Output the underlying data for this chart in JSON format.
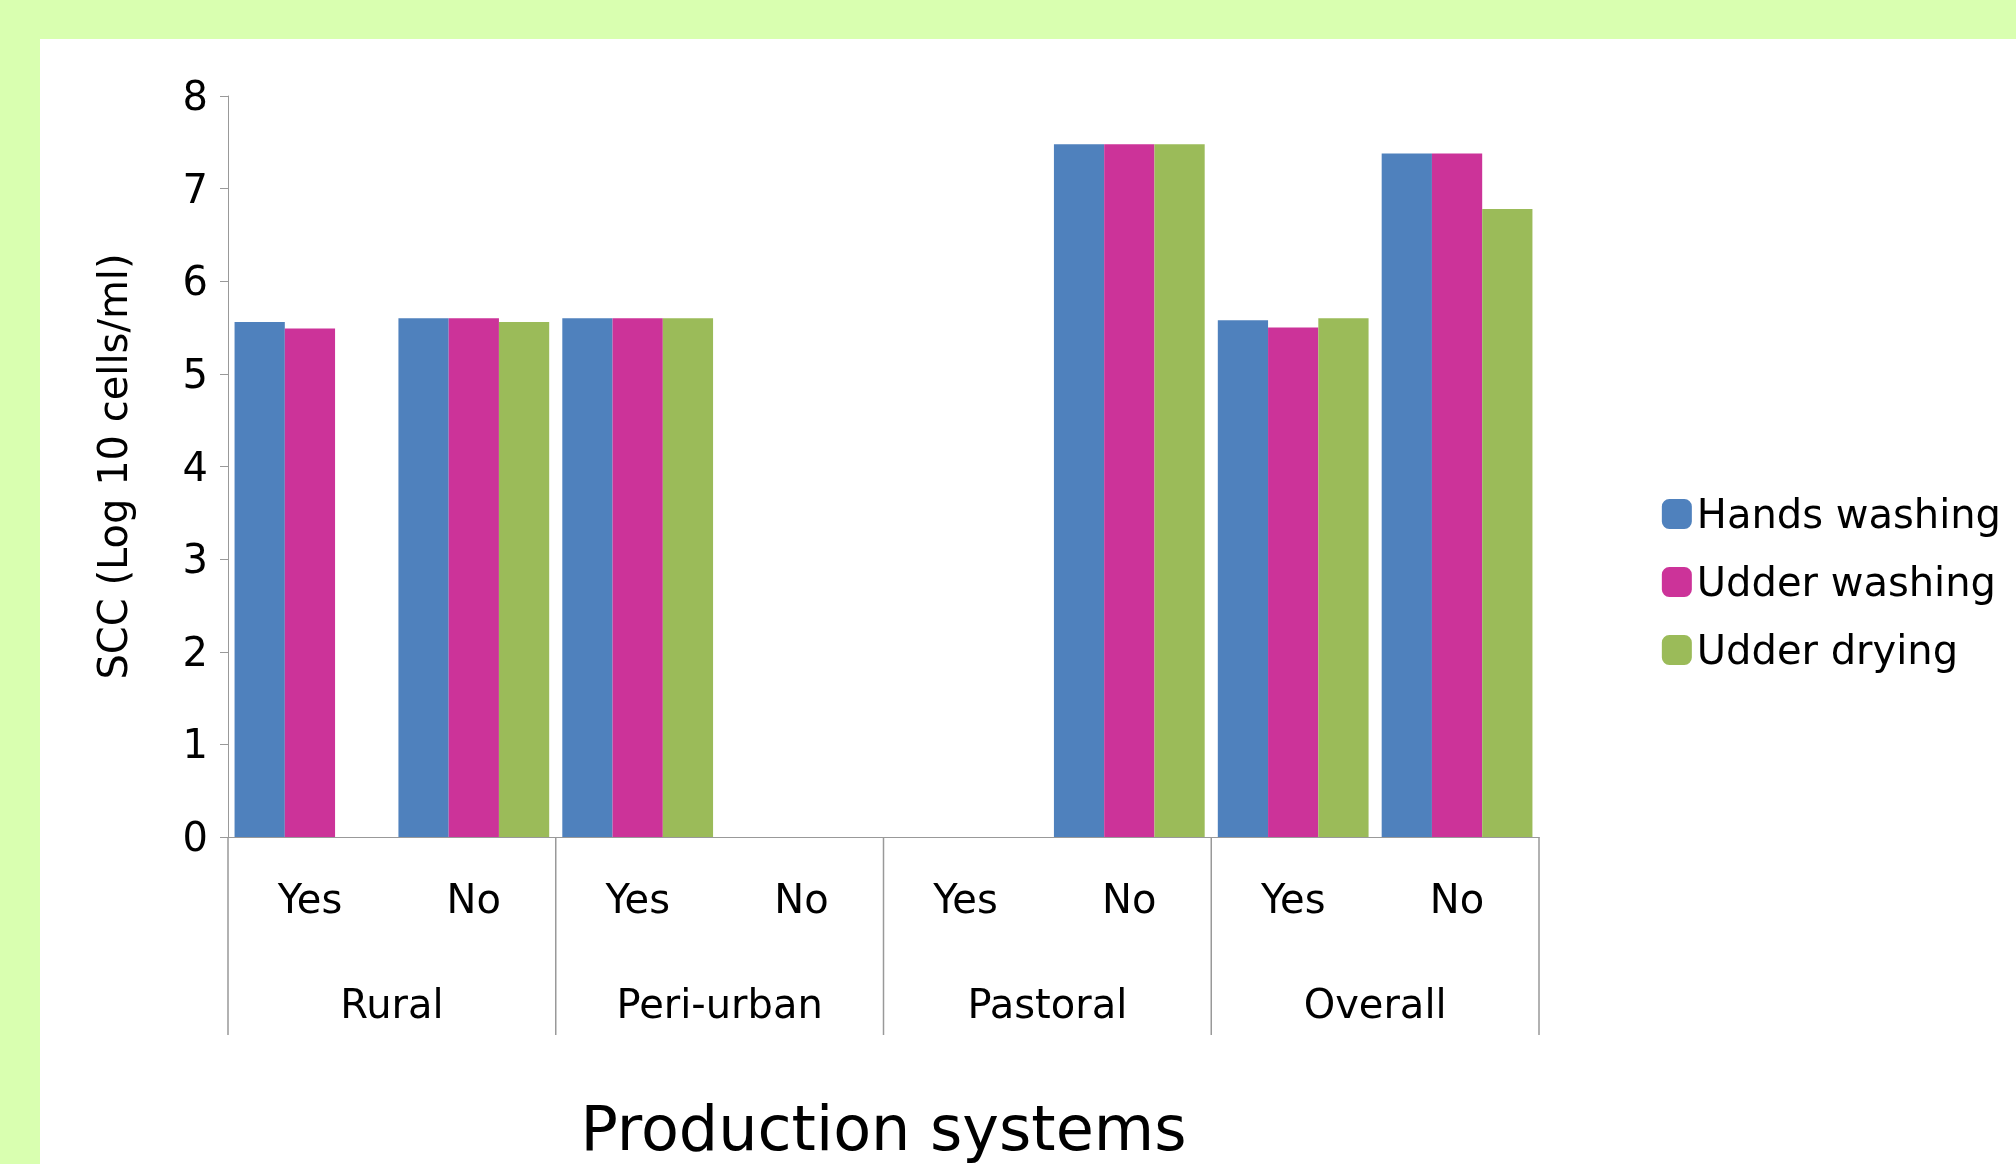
{
  "chart_data": {
    "type": "bar",
    "xlabel": "Production systems",
    "ylabel": "SCC (Log 10 cells/ml)",
    "categories": [
      "Yes",
      "No",
      "Yes",
      "No",
      "Yes",
      "No",
      "Yes",
      "No"
    ],
    "annotations": [
      "Rural",
      "Peri-urban",
      "Pastoral",
      "Overall"
    ],
    "series": [
      {
        "name": "Hands washing",
        "color": "#4f81bd",
        "values": [
          5.56,
          5.6,
          5.6,
          null,
          null,
          7.48,
          5.58,
          7.38
        ]
      },
      {
        "name": "Udder washing",
        "color": "#cc3399",
        "values": [
          5.49,
          5.6,
          5.6,
          null,
          null,
          7.48,
          5.5,
          7.38
        ]
      },
      {
        "name": "Udder drying",
        "color": "#9bbb59",
        "values": [
          null,
          5.56,
          5.6,
          null,
          null,
          7.48,
          5.6,
          6.78
        ]
      }
    ],
    "ylim": [
      0,
      8
    ],
    "yticks": [
      0,
      1,
      2,
      3,
      4,
      5,
      6,
      7,
      8
    ],
    "grid": false,
    "legend": "right"
  }
}
